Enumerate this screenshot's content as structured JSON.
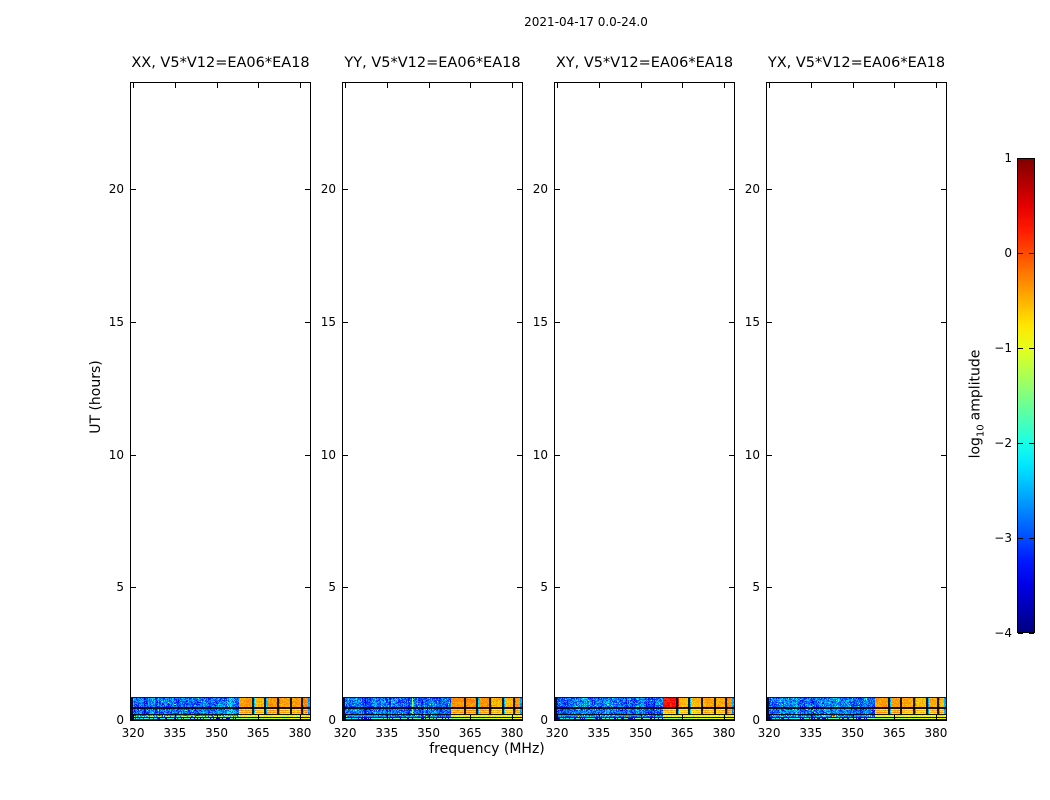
{
  "chart_data": {
    "type": "heatmap",
    "suptitle": "2021-04-17 0.0-24.0",
    "xlabel": "frequency (MHz)",
    "ylabel": "UT (hours)",
    "xlim": [
      319.25,
      383.6
    ],
    "ylim": [
      0,
      24
    ],
    "xticks": [
      320,
      335,
      350,
      365,
      380
    ],
    "xtick_labels": [
      "320",
      "335",
      "350",
      "365",
      "380"
    ],
    "yticks": [
      0,
      5,
      10,
      15,
      20
    ],
    "ytick_labels": [
      "0",
      "5",
      "10",
      "15",
      "20"
    ],
    "grid": false,
    "colorbar": {
      "label_prefix": "log",
      "label_sub": "10",
      "label_suffix": "amplitude",
      "cmap": "jet",
      "vmin": -4,
      "vmax": 1,
      "ticks": [
        1,
        0,
        -1,
        -2,
        -3,
        -4
      ],
      "tick_labels": [
        "1",
        "0",
        "−1",
        "−2",
        "−3",
        "−4"
      ]
    },
    "panels": [
      {
        "id": "xx",
        "title": "XX, V5*V12=EA06*EA18",
        "seed": 7,
        "features": {
          "row3_dash_line_mhz": [
            320,
            357
          ],
          "row3_red_segments_mhz": [
            [
              333,
              336
            ]
          ]
        }
      },
      {
        "id": "yy",
        "title": "YY, V5*V12=EA06*EA18",
        "seed": 13,
        "features": {
          "green_vline_mhz": 344,
          "row3_red_segments_mhz": [
            [
              320,
              331
            ]
          ]
        }
      },
      {
        "id": "xy",
        "title": "XY, V5*V12=EA06*EA18",
        "seed": 21,
        "features": {
          "red_patch_mhz": [
            358,
            363.5
          ],
          "row3_red_segments_mhz": [
            [
              320,
              328
            ],
            [
              341,
              349
            ]
          ]
        }
      },
      {
        "id": "yx",
        "title": "YX, V5*V12=EA06*EA18",
        "seed": 5,
        "features": {
          "row3_red_segments_mhz": [
            [
              350,
              354
            ]
          ]
        }
      }
    ],
    "band": {
      "description": "data present only near start of day; rest of 0-24h axis empty (white)",
      "time_extent_hours": [
        0.0,
        0.9
      ],
      "blue_region": {
        "mhz": [
          319.25,
          358
        ],
        "mean_log_amp": -2.85,
        "noise_sigma": 0.45
      },
      "orange_region": {
        "mhz": [
          358,
          383.6
        ],
        "mean_log_amp": -0.45,
        "noise_sigma": 0.18,
        "block_separators_mhz": [
          362.6,
          367.2,
          371.8,
          376.4,
          380.2
        ]
      },
      "row_divider_times_hours": [
        0.52,
        0.27
      ],
      "speckle_row_hours": [
        0.13,
        0.26
      ],
      "bottom_row": {
        "mean_log_amp": -3.8,
        "bright_line_log_amp": -0.9
      }
    }
  }
}
